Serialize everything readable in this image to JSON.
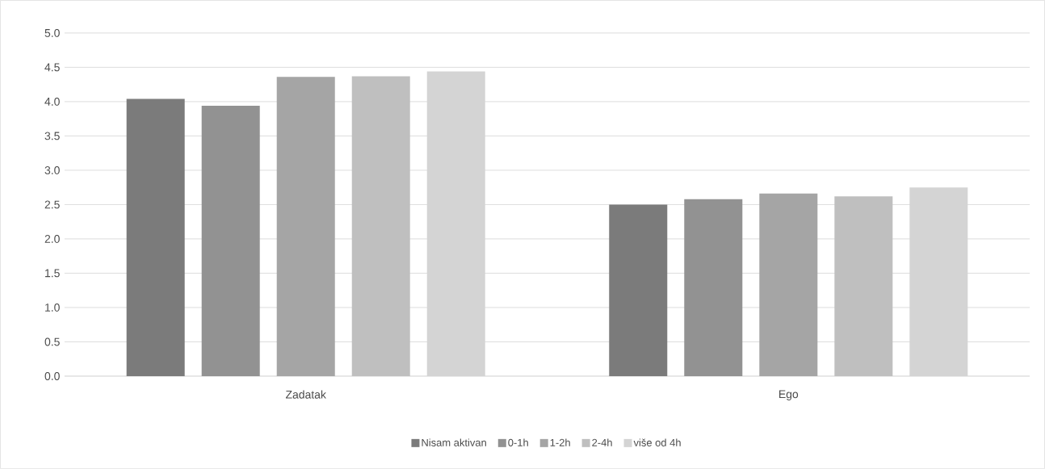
{
  "chart_data": {
    "type": "bar",
    "categories": [
      "Zadatak",
      "Ego"
    ],
    "series": [
      {
        "name": "Nisam aktivan",
        "color": "#7b7b7b",
        "values": [
          4.04,
          2.5
        ]
      },
      {
        "name": "0-1h",
        "color": "#929292",
        "values": [
          3.94,
          2.58
        ]
      },
      {
        "name": "1-2h",
        "color": "#a5a5a5",
        "values": [
          4.36,
          2.66
        ]
      },
      {
        "name": "2-4h",
        "color": "#bfbfbf",
        "values": [
          4.37,
          2.62
        ]
      },
      {
        "name": "više od 4h",
        "color": "#d4d4d4",
        "values": [
          4.44,
          2.75
        ]
      }
    ],
    "ylim": [
      0,
      5
    ],
    "yticks": [
      {
        "value": 0,
        "label": "0.0"
      },
      0.5,
      {
        "value": 1,
        "label": "1.0"
      },
      1.5,
      {
        "value": 2,
        "label": "2.0"
      },
      2.5,
      {
        "value": 3,
        "label": "3.0"
      },
      3.5,
      {
        "value": 4,
        "label": "4.0"
      },
      4.5,
      {
        "value": 5,
        "label": "5.0"
      }
    ],
    "grid": "y",
    "legend": "bottom"
  }
}
